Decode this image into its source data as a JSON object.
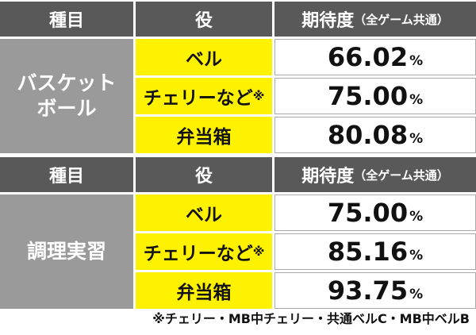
{
  "tables": [
    {
      "header": [
        "種目",
        "役",
        "期待度",
        "（全ゲーム共通）"
      ],
      "category_lines": [
        "バスケット",
        "ボール"
      ],
      "rows": [
        {
          "role": "ベル",
          "value": "66.02",
          "unit": "%"
        },
        {
          "role": "チェリーなど",
          "note_mark": "※",
          "value": "75.00",
          "unit": "%"
        },
        {
          "role": "弁当箱",
          "value": "80.08",
          "unit": "%"
        }
      ]
    },
    {
      "header": [
        "種目",
        "役",
        "期待度",
        "（全ゲーム共通）"
      ],
      "category_lines": [
        "調理実習"
      ],
      "rows": [
        {
          "role": "ベル",
          "value": "75.00",
          "unit": "%"
        },
        {
          "role": "チェリーなど",
          "note_mark": "※",
          "value": "85.16",
          "unit": "%"
        },
        {
          "role": "弁当箱",
          "value": "93.75",
          "unit": "%"
        }
      ]
    }
  ],
  "footnote": "※チェリー・MB中チェリー・共通ベルC・MB中ベルB"
}
